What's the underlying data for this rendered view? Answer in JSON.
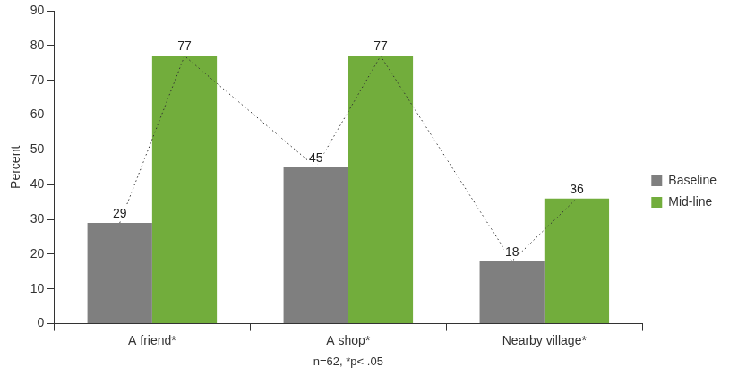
{
  "chart_data": {
    "type": "bar",
    "categories": [
      "A friend*",
      "A shop*",
      "Nearby village*"
    ],
    "series": [
      {
        "name": "Baseline",
        "color": "#7f7f7f",
        "values": [
          29,
          45,
          18
        ]
      },
      {
        "name": "Mid-line",
        "color": "#72ad3c",
        "values": [
          77,
          77,
          36
        ]
      }
    ],
    "ylabel": "Percent",
    "xlabel": "n=62, *p< .05",
    "ylim": [
      0,
      90
    ],
    "yticks": [
      0,
      10,
      20,
      30,
      40,
      50,
      60,
      70,
      80,
      90
    ],
    "grid": false,
    "legend": "right",
    "data_labels": true
  }
}
